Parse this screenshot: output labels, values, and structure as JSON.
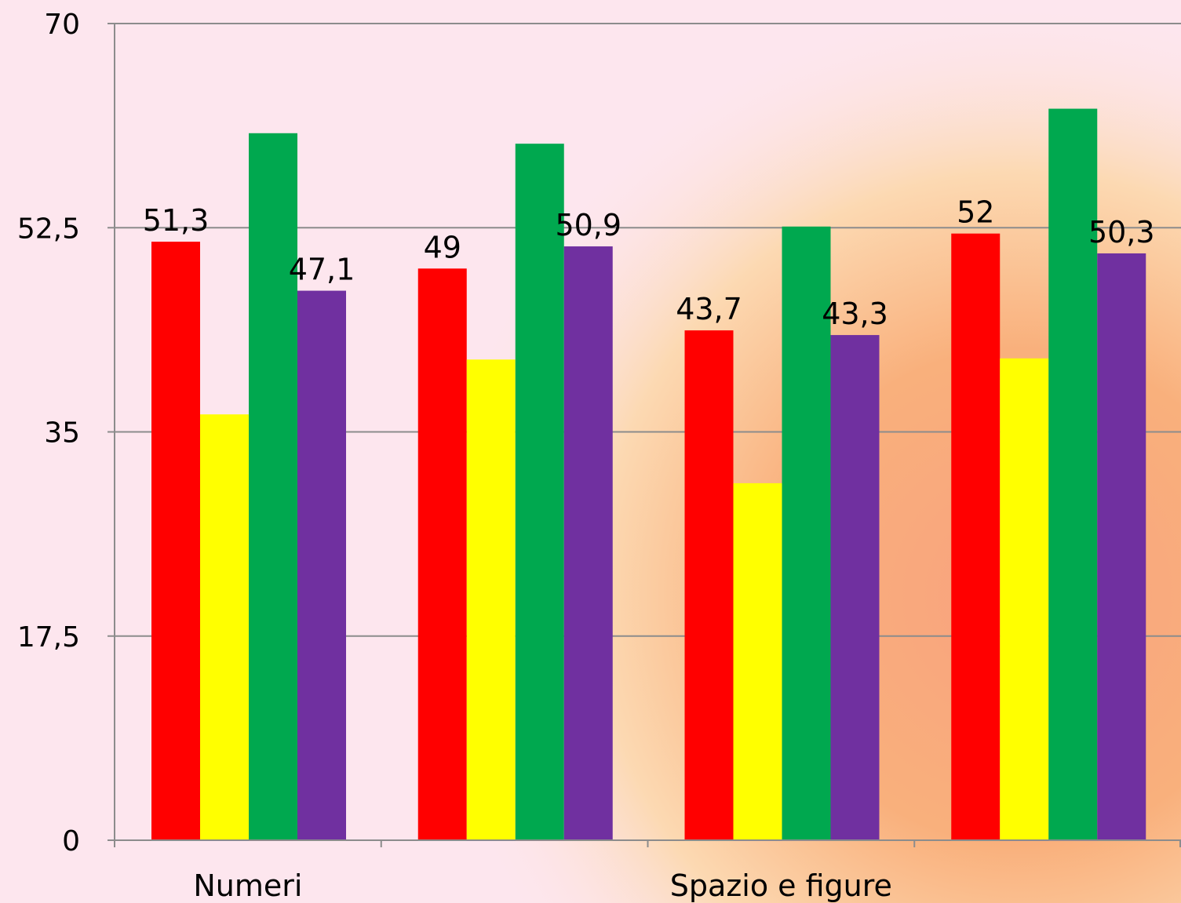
{
  "chart_data": {
    "type": "bar",
    "categories": [
      "Numeri",
      "",
      "Spazio e figure",
      ""
    ],
    "series": [
      {
        "color": "#ff0000",
        "values": [
          51.3,
          49,
          43.7,
          52
        ]
      },
      {
        "color": "#ffff00",
        "values": [
          36.5,
          41.2,
          30.6,
          41.3
        ]
      },
      {
        "color": "#00a84f",
        "values": [
          60.6,
          59.7,
          52.6,
          62.7
        ]
      },
      {
        "color": "#7030a0",
        "values": [
          47.1,
          50.9,
          43.3,
          50.3
        ]
      }
    ],
    "data_labels": [
      [
        "51,3",
        "49",
        "43,7",
        "52"
      ],
      [
        "",
        "",
        "",
        ""
      ],
      [
        "",
        "",
        "",
        ""
      ],
      [
        "47,1",
        "50,9",
        "43,3",
        "50,3"
      ]
    ],
    "y_ticks": [
      "0",
      "17,5",
      "35",
      "52,5",
      "70"
    ],
    "ylim": [
      0,
      70
    ],
    "grid": true,
    "legend": "none",
    "xlabel": "",
    "ylabel": ""
  }
}
